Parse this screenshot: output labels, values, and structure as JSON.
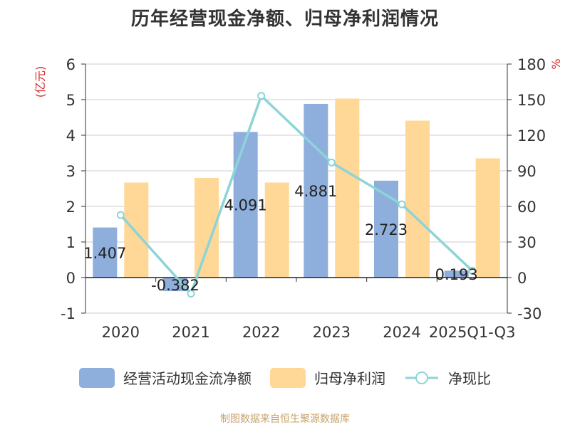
{
  "colors": {
    "cash": "#8eaedc",
    "profit": "#ffd796",
    "ratio": "#8dd4d8",
    "axis_title": "#d62728",
    "grid": "#cccccc",
    "text": "#333333"
  },
  "source": "制图数据来自恒生聚源数据库",
  "chart_data": {
    "type": "bar",
    "title": "历年经营现金净额、归母净利润情况",
    "categories": [
      "2020",
      "2021",
      "2022",
      "2023",
      "2024",
      "2025Q1-Q3"
    ],
    "ylabel_left": "(亿元)",
    "ylabel_right": "%",
    "ylim_left": [
      -1,
      6
    ],
    "ylim_right": [
      -30,
      180
    ],
    "yticks_left": [
      -1,
      0,
      1,
      2,
      3,
      4,
      5,
      6
    ],
    "yticks_right": [
      -30,
      0,
      30,
      60,
      90,
      120,
      150,
      180
    ],
    "grid": true,
    "legend_position": "bottom",
    "series": [
      {
        "name": "经营活动现金流净额",
        "kind": "bar",
        "axis": "left",
        "values": [
          1.407,
          -0.382,
          4.091,
          4.881,
          2.723,
          0.193
        ],
        "labels": [
          "1.407",
          "-0.382",
          "4.091",
          "4.881",
          "2.723",
          "0.193"
        ]
      },
      {
        "name": "归母净利润",
        "kind": "bar",
        "axis": "left",
        "values": [
          2.67,
          2.8,
          2.67,
          5.03,
          4.41,
          3.35
        ]
      },
      {
        "name": "净现比",
        "kind": "line",
        "axis": "right",
        "values": [
          52.7,
          -13.6,
          153.2,
          97.0,
          61.7,
          5.8
        ]
      }
    ]
  }
}
